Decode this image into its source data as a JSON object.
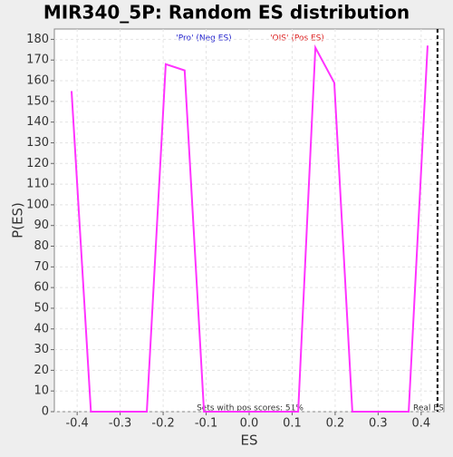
{
  "chart_data": {
    "type": "line",
    "title": "MIR340_5P: Random ES distribution",
    "x_label": "ES",
    "y_label": "P(ES)",
    "x": [
      -0.413,
      -0.368,
      -0.238,
      -0.194,
      -0.15,
      -0.105,
      0.114,
      0.154,
      0.198,
      0.24,
      0.371,
      0.415
    ],
    "series": [
      {
        "color": "#ff33ff",
        "values": [
          155,
          0,
          0,
          168,
          165,
          0,
          0,
          176,
          159,
          0,
          0,
          177
        ]
      }
    ],
    "xlim": [
      -0.453,
      0.453
    ],
    "ylim": [
      0,
      185
    ],
    "xticks": [
      -0.4,
      -0.3,
      -0.2,
      -0.1,
      {
        "value": 0,
        "label": "0.0"
      },
      0.1,
      0.2,
      0.3,
      0.4
    ],
    "yticks": [
      0,
      10,
      20,
      30,
      40,
      50,
      60,
      70,
      80,
      90,
      100,
      110,
      120,
      130,
      140,
      150,
      160,
      170,
      180
    ],
    "grid": true,
    "real_es": 0.438,
    "real_es_label": "Real ES",
    "neg_label": "'Pro' (Neg ES)",
    "pos_label": "'OIS' (Pos ES)",
    "pos_scores_label": "Sets with pos scores: 51%"
  }
}
